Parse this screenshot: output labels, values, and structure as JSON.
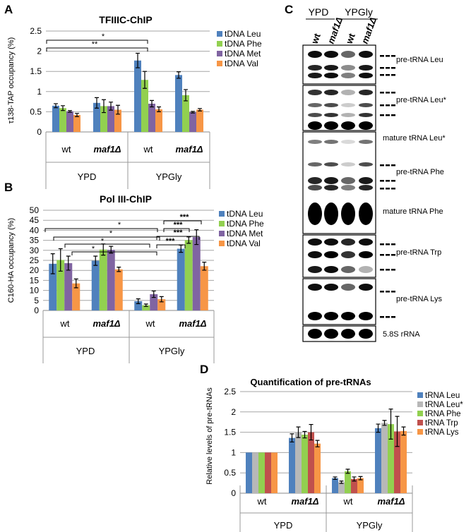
{
  "panel_letters": {
    "a": "A",
    "b": "B",
    "c": "C",
    "d": "D"
  },
  "colors": {
    "leu": "#4f81bd",
    "leustar": "#b8b8b8",
    "phe": "#92d050",
    "met": "#8064a2",
    "trp": "#c0504d",
    "val": "#f79646",
    "lys": "#f79646"
  },
  "chart_data": [
    {
      "panel": "A",
      "type": "bar",
      "title": "TFIIIC-ChIP",
      "xlabel": "",
      "ylabel": "τ138-TAP occupancy (%)",
      "ylim": [
        0,
        2.5
      ],
      "yticks": [
        "0",
        "0.5",
        "1",
        "1.5",
        "2",
        "2.5"
      ],
      "categories": [
        "wt",
        "maf1Δ",
        "wt",
        "maf1Δ"
      ],
      "groups": [
        "YPD",
        "YPGly"
      ],
      "series": [
        {
          "name": "tDNA Leu",
          "color": "#4f81bd",
          "values": [
            0.65,
            0.72,
            1.77,
            1.41
          ],
          "errors": [
            0.05,
            0.13,
            0.18,
            0.08
          ]
        },
        {
          "name": "tDNA Phe",
          "color": "#92d050",
          "values": [
            0.59,
            0.64,
            1.29,
            0.91
          ],
          "errors": [
            0.06,
            0.16,
            0.21,
            0.14
          ]
        },
        {
          "name": "tDNA Met",
          "color": "#8064a2",
          "values": [
            0.51,
            0.64,
            0.7,
            0.49
          ],
          "errors": [
            0.02,
            0.1,
            0.08,
            0.02
          ]
        },
        {
          "name": "tDNA Val",
          "color": "#f79646",
          "values": [
            0.42,
            0.55,
            0.56,
            0.55
          ],
          "errors": [
            0.04,
            0.11,
            0.06,
            0.03
          ]
        }
      ],
      "significance": [
        "*",
        "**"
      ]
    },
    {
      "panel": "B",
      "type": "bar",
      "title": "Pol III-ChIP",
      "xlabel": "",
      "ylabel": "C160-HA occupancy (%)",
      "ylim": [
        0,
        50
      ],
      "yticks": [
        "0",
        "5",
        "10",
        "15",
        "20",
        "25",
        "30",
        "35",
        "40",
        "45",
        "50"
      ],
      "categories": [
        "wt",
        "maf1Δ",
        "wt",
        "maf1Δ"
      ],
      "groups": [
        "YPD",
        "YPGly"
      ],
      "series": [
        {
          "name": "tDNA Leu",
          "color": "#4f81bd",
          "values": [
            23.3,
            24.8,
            4.6,
            30.8
          ],
          "errors": [
            5,
            2.3,
            1.2,
            1.8
          ]
        },
        {
          "name": "tDNA Phe",
          "color": "#92d050",
          "values": [
            25.2,
            30.4,
            2.6,
            35.1
          ],
          "errors": [
            5.6,
            2.8,
            0.6,
            1.6
          ]
        },
        {
          "name": "tDNA Met",
          "color": "#8064a2",
          "values": [
            23.6,
            30.3,
            8.1,
            36.6
          ],
          "errors": [
            3.5,
            1.7,
            1.6,
            3.7
          ]
        },
        {
          "name": "tDNA Val",
          "color": "#f79646",
          "values": [
            13.5,
            20.5,
            5.6,
            22.1
          ],
          "errors": [
            2.2,
            1.1,
            1.3,
            2.0
          ]
        }
      ],
      "significance": [
        "*",
        "*",
        "*",
        "*",
        "***",
        "***",
        "***",
        "***"
      ]
    },
    {
      "panel": "D",
      "type": "bar",
      "title": "Quantification of pre-tRNAs",
      "xlabel": "",
      "ylabel": "Relative levels of pre-tRNAs",
      "ylim": [
        0,
        2.5
      ],
      "yticks": [
        "0",
        "0.5",
        "1",
        "1.5",
        "2",
        "2.5"
      ],
      "categories": [
        "wt",
        "maf1Δ",
        "wt",
        "maf1Δ"
      ],
      "groups": [
        "YPD",
        "YPGly"
      ],
      "series": [
        {
          "name": "tRNA Leu",
          "color": "#4f81bd",
          "values": [
            1.0,
            1.36,
            0.37,
            1.6
          ],
          "errors": [
            0,
            0.1,
            0.03,
            0.1
          ]
        },
        {
          "name": "tRNA Leu*",
          "color": "#b8b8b8",
          "values": [
            1.0,
            1.5,
            0.27,
            1.73
          ],
          "errors": [
            0,
            0.13,
            0.03,
            0.06
          ]
        },
        {
          "name": "tRNA Phe",
          "color": "#92d050",
          "values": [
            1.0,
            1.44,
            0.54,
            1.7
          ],
          "errors": [
            0,
            0.08,
            0.05,
            0.37
          ]
        },
        {
          "name": "tRNA Trp",
          "color": "#c0504d",
          "values": [
            1.0,
            1.5,
            0.35,
            1.52
          ],
          "errors": [
            0,
            0.19,
            0.05,
            0.37
          ]
        },
        {
          "name": "tRNA Lys",
          "color": "#f79646",
          "values": [
            1.0,
            1.22,
            0.37,
            1.53
          ],
          "errors": [
            0,
            0.08,
            0.04,
            0.1
          ]
        }
      ]
    }
  ],
  "blot": {
    "col_group_labels": [
      "YPD",
      "YPGly"
    ],
    "lane_labels": [
      "wt",
      "maf1Δ",
      "wt",
      "maf1Δ"
    ],
    "band_labels": [
      "pre-tRNA Leu",
      "pre-tRNA Leu*",
      "mature tRNA Leu*",
      "pre-tRNA Phe",
      "mature tRNA Phe",
      "pre-tRNA Trp",
      "pre-tRNA Lys",
      "5.8S rRNA"
    ]
  }
}
